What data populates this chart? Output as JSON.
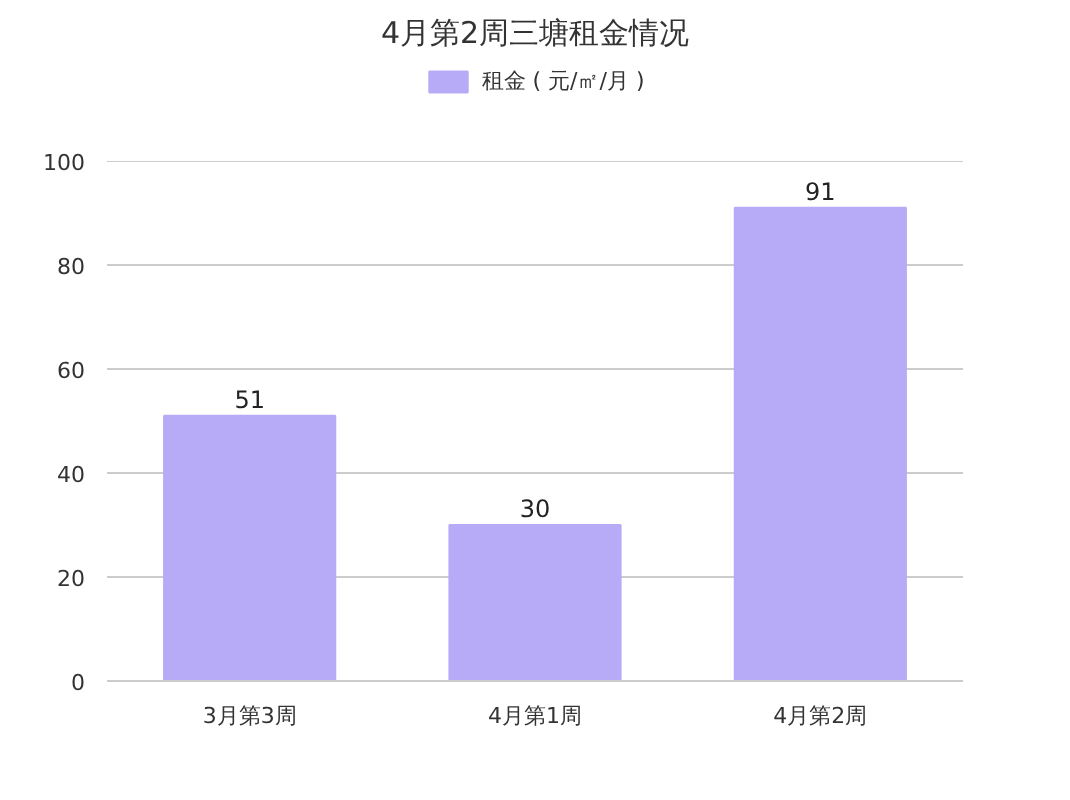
{
  "chart_data": {
    "type": "bar",
    "title": "4月第2周三塘租金情况",
    "categories": [
      "3月第3周",
      "4月第1周",
      "4月第2周"
    ],
    "series": [
      {
        "name": "租金 ( 元/㎡/月 )",
        "color": "#b7aaf7",
        "values": [
          51,
          30,
          91
        ]
      }
    ],
    "ylim": [
      0,
      100
    ],
    "yticks": [
      0,
      20,
      40,
      60,
      80,
      100
    ],
    "grid": "y",
    "legend": "top",
    "data_labels": true
  }
}
